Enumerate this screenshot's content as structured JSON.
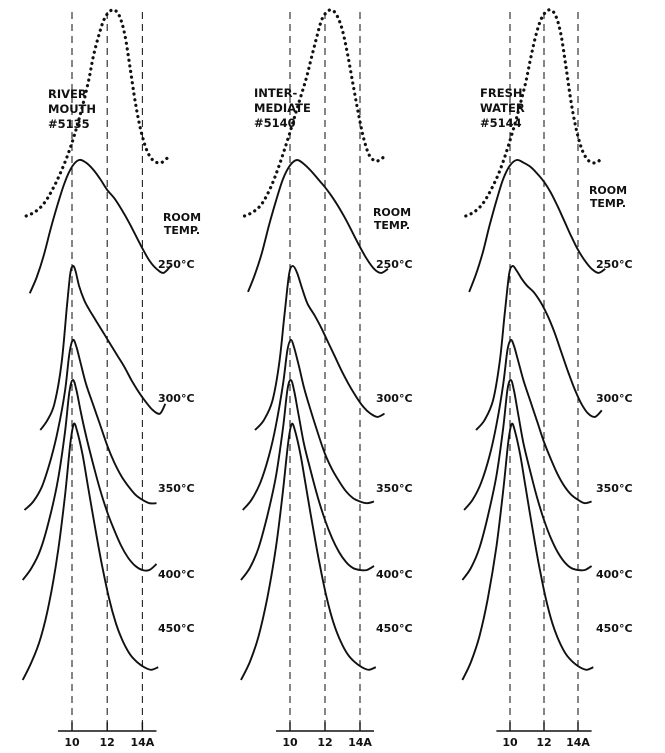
{
  "chart_data": [
    {
      "type": "line",
      "title_lines": [
        "RIVER",
        "MOUTH",
        "#5135"
      ],
      "x_ticks": [
        "10",
        "12",
        "14A"
      ],
      "reference_lines_at": [
        10,
        12,
        14
      ],
      "x_range": [
        7.0,
        15.5
      ],
      "series": [
        {
          "name": "ROOM TEMP.",
          "style": "dotted",
          "label_lines": [
            "ROOM",
            "TEMP."
          ],
          "x": [
            7.4,
            7.9,
            8.4,
            8.9,
            9.4,
            9.9,
            10.4,
            10.9,
            11.2,
            11.5,
            11.8,
            12.1,
            12.4,
            12.7,
            13.0,
            13.3,
            13.6,
            13.9,
            14.2,
            14.5,
            14.8,
            15.1,
            15.4
          ],
          "y": [
            0.0,
            0.02,
            0.06,
            0.13,
            0.22,
            0.33,
            0.47,
            0.64,
            0.77,
            0.87,
            0.95,
            0.99,
            1.0,
            0.97,
            0.88,
            0.72,
            0.55,
            0.42,
            0.33,
            0.28,
            0.26,
            0.26,
            0.28
          ]
        },
        {
          "name": "250°C",
          "style": "solid",
          "x": [
            7.6,
            8.0,
            8.4,
            8.8,
            9.2,
            9.6,
            10.0,
            10.4,
            10.8,
            11.2,
            11.6,
            12.0,
            12.4,
            12.8,
            13.2,
            13.6,
            14.0,
            14.4,
            14.8,
            15.2,
            15.6
          ],
          "y": [
            0.02,
            0.14,
            0.3,
            0.5,
            0.68,
            0.84,
            0.95,
            1.0,
            0.98,
            0.93,
            0.86,
            0.78,
            0.72,
            0.64,
            0.55,
            0.45,
            0.35,
            0.26,
            0.2,
            0.17,
            0.22
          ]
        },
        {
          "name": "300°C",
          "style": "solid",
          "x": [
            8.2,
            8.6,
            9.0,
            9.4,
            9.7,
            9.9,
            10.05,
            10.2,
            10.4,
            10.7,
            11.0,
            11.4,
            11.8,
            12.2,
            12.6,
            13.0,
            13.4,
            13.8,
            14.2,
            14.6,
            15.0,
            15.3
          ],
          "y": [
            0.0,
            0.06,
            0.16,
            0.4,
            0.74,
            0.95,
            1.0,
            0.97,
            0.88,
            0.79,
            0.73,
            0.66,
            0.59,
            0.52,
            0.45,
            0.38,
            0.3,
            0.23,
            0.17,
            0.12,
            0.1,
            0.16
          ]
        },
        {
          "name": "350°C",
          "style": "solid",
          "x": [
            7.3,
            7.8,
            8.3,
            8.8,
            9.2,
            9.6,
            9.85,
            10.05,
            10.25,
            10.5,
            10.8,
            11.2,
            11.6,
            12.0,
            12.4,
            12.8,
            13.2,
            13.6,
            14.0,
            14.4,
            14.8
          ],
          "y": [
            0.0,
            0.05,
            0.14,
            0.3,
            0.47,
            0.7,
            0.92,
            1.0,
            0.96,
            0.86,
            0.74,
            0.62,
            0.5,
            0.38,
            0.28,
            0.2,
            0.14,
            0.09,
            0.06,
            0.04,
            0.04
          ]
        },
        {
          "name": "400°C",
          "style": "solid",
          "x": [
            7.2,
            7.7,
            8.2,
            8.7,
            9.2,
            9.6,
            9.85,
            10.05,
            10.25,
            10.5,
            10.8,
            11.2,
            11.6,
            12.0,
            12.4,
            12.8,
            13.2,
            13.6,
            14.0,
            14.4,
            14.8
          ],
          "y": [
            0.0,
            0.06,
            0.15,
            0.3,
            0.5,
            0.74,
            0.94,
            1.0,
            0.95,
            0.84,
            0.72,
            0.58,
            0.45,
            0.34,
            0.25,
            0.17,
            0.11,
            0.07,
            0.05,
            0.05,
            0.08
          ]
        },
        {
          "name": "450°C",
          "style": "solid",
          "x": [
            7.2,
            7.7,
            8.2,
            8.7,
            9.2,
            9.6,
            9.9,
            10.1,
            10.3,
            10.6,
            10.9,
            11.3,
            11.7,
            12.1,
            12.5,
            12.9,
            13.3,
            13.7,
            14.1,
            14.5,
            14.9
          ],
          "y": [
            0.0,
            0.07,
            0.16,
            0.3,
            0.5,
            0.72,
            0.92,
            1.0,
            0.97,
            0.88,
            0.76,
            0.6,
            0.45,
            0.32,
            0.22,
            0.15,
            0.1,
            0.07,
            0.05,
            0.04,
            0.05
          ]
        }
      ]
    },
    {
      "type": "line",
      "title_lines": [
        "INTER-",
        "MEDIATE",
        "#5140"
      ],
      "x_ticks": [
        "10",
        "12",
        "14A"
      ],
      "reference_lines_at": [
        10,
        12,
        14
      ],
      "x_range": [
        7.0,
        15.5
      ],
      "series": [
        {
          "name": "ROOM TEMP.",
          "style": "dotted",
          "label_lines": [
            "ROOM",
            "TEMP."
          ],
          "x": [
            7.4,
            7.9,
            8.4,
            8.9,
            9.4,
            9.9,
            10.4,
            10.9,
            11.2,
            11.5,
            11.8,
            12.1,
            12.4,
            12.7,
            13.0,
            13.3,
            13.6,
            13.9,
            14.2,
            14.5,
            14.8,
            15.1,
            15.4
          ],
          "y": [
            0.0,
            0.02,
            0.06,
            0.14,
            0.25,
            0.38,
            0.52,
            0.66,
            0.76,
            0.86,
            0.95,
            0.99,
            1.0,
            0.97,
            0.9,
            0.78,
            0.64,
            0.5,
            0.38,
            0.3,
            0.27,
            0.27,
            0.29
          ]
        },
        {
          "name": "250°C",
          "style": "solid",
          "x": [
            7.6,
            8.0,
            8.4,
            8.8,
            9.2,
            9.6,
            10.0,
            10.4,
            10.8,
            11.2,
            11.6,
            12.0,
            12.4,
            12.8,
            13.2,
            13.6,
            14.0,
            14.4,
            14.8,
            15.2,
            15.6
          ],
          "y": [
            0.03,
            0.16,
            0.32,
            0.52,
            0.7,
            0.86,
            0.96,
            1.0,
            0.97,
            0.92,
            0.86,
            0.8,
            0.73,
            0.65,
            0.56,
            0.46,
            0.36,
            0.27,
            0.2,
            0.17,
            0.2
          ]
        },
        {
          "name": "300°C",
          "style": "solid",
          "x": [
            8.0,
            8.5,
            9.0,
            9.4,
            9.7,
            9.95,
            10.15,
            10.4,
            10.7,
            11.0,
            11.4,
            11.8,
            12.2,
            12.6,
            13.0,
            13.4,
            13.8,
            14.2,
            14.6,
            15.0,
            15.4
          ],
          "y": [
            0.0,
            0.06,
            0.18,
            0.42,
            0.72,
            0.95,
            1.0,
            0.96,
            0.86,
            0.77,
            0.7,
            0.62,
            0.53,
            0.44,
            0.35,
            0.27,
            0.2,
            0.14,
            0.1,
            0.08,
            0.1
          ]
        },
        {
          "name": "350°C",
          "style": "solid",
          "x": [
            7.3,
            7.8,
            8.3,
            8.8,
            9.2,
            9.6,
            9.85,
            10.05,
            10.25,
            10.5,
            10.8,
            11.2,
            11.6,
            12.0,
            12.4,
            12.8,
            13.2,
            13.6,
            14.0,
            14.4,
            14.8
          ],
          "y": [
            0.0,
            0.06,
            0.16,
            0.32,
            0.5,
            0.74,
            0.94,
            1.0,
            0.95,
            0.85,
            0.72,
            0.58,
            0.45,
            0.33,
            0.24,
            0.17,
            0.11,
            0.07,
            0.05,
            0.04,
            0.05
          ]
        },
        {
          "name": "400°C",
          "style": "solid",
          "x": [
            7.2,
            7.7,
            8.2,
            8.7,
            9.2,
            9.6,
            9.85,
            10.05,
            10.25,
            10.5,
            10.8,
            11.2,
            11.6,
            12.0,
            12.4,
            12.8,
            13.2,
            13.6,
            14.0,
            14.4,
            14.8
          ],
          "y": [
            0.0,
            0.06,
            0.16,
            0.32,
            0.52,
            0.76,
            0.95,
            1.0,
            0.94,
            0.82,
            0.68,
            0.54,
            0.41,
            0.3,
            0.21,
            0.14,
            0.09,
            0.06,
            0.05,
            0.05,
            0.07
          ]
        },
        {
          "name": "450°C",
          "style": "solid",
          "x": [
            7.2,
            7.7,
            8.2,
            8.7,
            9.2,
            9.6,
            9.9,
            10.1,
            10.3,
            10.6,
            10.9,
            11.3,
            11.7,
            12.1,
            12.5,
            12.9,
            13.3,
            13.7,
            14.1,
            14.5,
            14.9
          ],
          "y": [
            0.0,
            0.07,
            0.17,
            0.32,
            0.52,
            0.74,
            0.93,
            1.0,
            0.97,
            0.88,
            0.76,
            0.6,
            0.45,
            0.32,
            0.22,
            0.15,
            0.1,
            0.07,
            0.05,
            0.04,
            0.05
          ]
        }
      ]
    },
    {
      "type": "line",
      "title_lines": [
        "FRESH",
        "WATER",
        "#5144"
      ],
      "x_ticks": [
        "10",
        "12",
        "14A"
      ],
      "reference_lines_at": [
        10,
        12,
        14
      ],
      "x_range": [
        7.0,
        15.5
      ],
      "series": [
        {
          "name": "ROOM TEMP.",
          "style": "dotted",
          "label_lines": [
            "ROOM",
            "TEMP."
          ],
          "x": [
            7.4,
            7.9,
            8.4,
            8.9,
            9.4,
            9.9,
            10.4,
            10.9,
            11.2,
            11.5,
            11.8,
            12.1,
            12.4,
            12.7,
            13.0,
            13.3,
            13.6,
            13.9,
            14.2,
            14.5,
            14.8,
            15.1,
            15.4
          ],
          "y": [
            0.0,
            0.02,
            0.06,
            0.13,
            0.22,
            0.34,
            0.48,
            0.64,
            0.76,
            0.87,
            0.95,
            0.99,
            1.0,
            0.97,
            0.88,
            0.72,
            0.55,
            0.42,
            0.33,
            0.28,
            0.26,
            0.26,
            0.28
          ]
        },
        {
          "name": "250°C",
          "style": "solid",
          "x": [
            7.6,
            8.0,
            8.4,
            8.8,
            9.2,
            9.6,
            10.0,
            10.4,
            10.8,
            11.2,
            11.6,
            12.0,
            12.4,
            12.8,
            13.2,
            13.6,
            14.0,
            14.4,
            14.8,
            15.2,
            15.6
          ],
          "y": [
            0.03,
            0.16,
            0.32,
            0.52,
            0.7,
            0.86,
            0.96,
            1.0,
            0.98,
            0.95,
            0.9,
            0.84,
            0.76,
            0.66,
            0.55,
            0.44,
            0.34,
            0.26,
            0.2,
            0.17,
            0.2
          ]
        },
        {
          "name": "300°C",
          "style": "solid",
          "x": [
            8.0,
            8.5,
            9.0,
            9.4,
            9.7,
            9.95,
            10.15,
            10.4,
            10.7,
            11.0,
            11.4,
            11.8,
            12.2,
            12.6,
            13.0,
            13.4,
            13.8,
            14.2,
            14.6,
            15.0,
            15.4
          ],
          "y": [
            0.0,
            0.06,
            0.18,
            0.42,
            0.72,
            0.95,
            1.0,
            0.97,
            0.92,
            0.88,
            0.84,
            0.78,
            0.7,
            0.6,
            0.48,
            0.36,
            0.25,
            0.16,
            0.1,
            0.08,
            0.12
          ]
        },
        {
          "name": "350°C",
          "style": "solid",
          "x": [
            7.3,
            7.8,
            8.3,
            8.8,
            9.2,
            9.6,
            9.85,
            10.05,
            10.25,
            10.5,
            10.8,
            11.2,
            11.6,
            12.0,
            12.4,
            12.8,
            13.2,
            13.6,
            14.0,
            14.4,
            14.8
          ],
          "y": [
            0.0,
            0.06,
            0.16,
            0.32,
            0.5,
            0.74,
            0.94,
            1.0,
            0.96,
            0.87,
            0.76,
            0.64,
            0.52,
            0.4,
            0.3,
            0.21,
            0.14,
            0.09,
            0.06,
            0.04,
            0.05
          ]
        },
        {
          "name": "400°C",
          "style": "solid",
          "x": [
            7.2,
            7.7,
            8.2,
            8.7,
            9.2,
            9.6,
            9.85,
            10.05,
            10.25,
            10.5,
            10.8,
            11.2,
            11.6,
            12.0,
            12.4,
            12.8,
            13.2,
            13.6,
            14.0,
            14.4,
            14.8
          ],
          "y": [
            0.0,
            0.06,
            0.16,
            0.32,
            0.52,
            0.76,
            0.95,
            1.0,
            0.94,
            0.82,
            0.68,
            0.54,
            0.41,
            0.3,
            0.21,
            0.14,
            0.09,
            0.06,
            0.05,
            0.05,
            0.07
          ]
        },
        {
          "name": "450°C",
          "style": "solid",
          "x": [
            7.2,
            7.7,
            8.2,
            8.7,
            9.2,
            9.6,
            9.9,
            10.1,
            10.3,
            10.6,
            10.9,
            11.3,
            11.7,
            12.1,
            12.5,
            12.9,
            13.3,
            13.7,
            14.1,
            14.5,
            14.9
          ],
          "y": [
            0.0,
            0.07,
            0.17,
            0.32,
            0.52,
            0.74,
            0.93,
            1.0,
            0.97,
            0.88,
            0.76,
            0.6,
            0.45,
            0.32,
            0.22,
            0.15,
            0.1,
            0.07,
            0.05,
            0.04,
            0.05
          ]
        }
      ]
    }
  ]
}
